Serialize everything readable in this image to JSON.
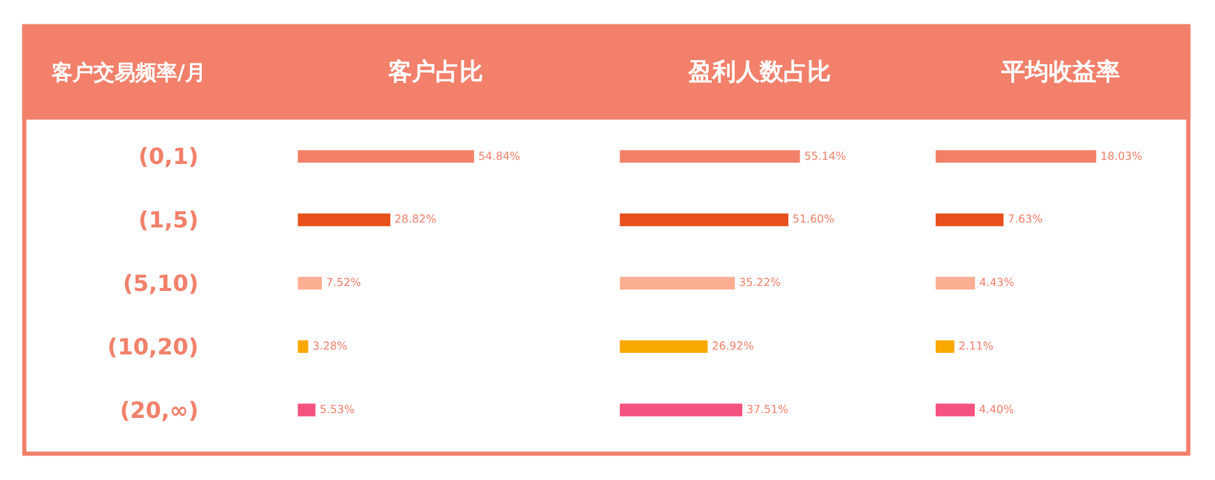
{
  "chart_data": [
    {
      "type": "bar",
      "orientation": "horizontal",
      "title": "客户占比",
      "ylabel": "客户交易频率/月",
      "categories": [
        "(0,1)",
        "(1,5)",
        "(5,10)",
        "(10,20)",
        "(20,∞)"
      ],
      "values": [
        54.84,
        28.82,
        7.52,
        3.28,
        5.53
      ],
      "value_labels": [
        "54.84%",
        "28.82%",
        "7.52%",
        "3.28%",
        "5.53%"
      ],
      "colors": [
        "#f28068",
        "#e8501e",
        "#fbae92",
        "#f9a800",
        "#f5537f"
      ],
      "tick_labels": "y"
    },
    {
      "type": "bar",
      "orientation": "horizontal",
      "title": "盈利人数占比",
      "categories": [
        "(0,1)",
        "(1,5)",
        "(5,10)",
        "(10,20)",
        "(20,∞)"
      ],
      "values": [
        55.14,
        51.6,
        35.22,
        26.92,
        37.51
      ],
      "value_labels": [
        "55.14%",
        "51.60%",
        "35.22%",
        "26.92%",
        "37.51%"
      ],
      "colors": [
        "#f28068",
        "#e8501e",
        "#fbae92",
        "#f9a800",
        "#f5537f"
      ],
      "tick_labels": false
    },
    {
      "type": "bar",
      "orientation": "horizontal",
      "title": "平均收益率",
      "categories": [
        "(0,1)",
        "(1,5)",
        "(5,10)",
        "(10,20)",
        "(20,∞)"
      ],
      "values": [
        18.03,
        7.63,
        4.43,
        2.11,
        4.4
      ],
      "value_labels": [
        "18.03%",
        "7.63%",
        "4.43%",
        "2.11%",
        "4.40%"
      ],
      "colors": [
        "#f28068",
        "#e8501e",
        "#fbae92",
        "#f9a800",
        "#f5537f"
      ],
      "tick_labels": false
    }
  ]
}
